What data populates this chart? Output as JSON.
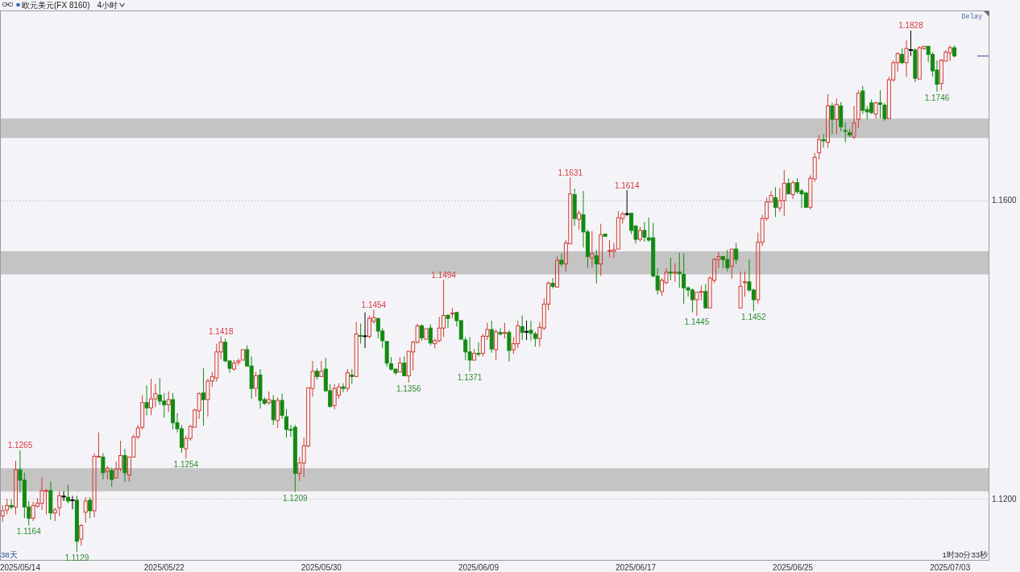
{
  "chart_data": {
    "type": "candlestick",
    "title": "欧元美元(FX 8160)",
    "subtitle": "4小时",
    "categories": [
      null,
      null,
      null,
      null,
      "2025/05/14",
      null,
      null,
      null,
      null,
      null,
      null,
      null,
      null,
      null,
      null,
      null,
      null,
      null,
      null,
      null,
      null,
      null,
      null,
      null,
      null,
      null,
      null,
      null,
      null,
      null,
      null,
      null,
      null,
      null,
      null,
      null,
      null,
      "2025/05/22",
      null,
      null,
      null,
      null,
      null,
      null,
      null,
      null,
      null,
      null,
      null,
      null,
      null,
      null,
      null,
      null,
      null,
      null,
      null,
      null,
      null,
      null,
      null,
      null,
      null,
      null,
      null,
      null,
      null,
      null,
      null,
      null,
      null,
      null,
      null,
      "2025/05/30",
      null,
      null,
      null,
      null,
      null,
      null,
      null,
      null,
      null,
      null,
      null,
      null,
      null,
      null,
      null,
      null,
      null,
      null,
      null,
      null,
      null,
      null,
      null,
      null,
      null,
      null,
      null,
      null,
      null,
      null,
      null,
      null,
      null,
      null,
      null,
      "2025/06/09",
      null,
      null,
      null,
      null,
      null,
      null,
      null,
      null,
      null,
      null,
      null,
      null,
      null,
      null,
      null,
      null,
      null,
      null,
      null,
      null,
      null,
      null,
      null,
      null,
      null,
      null,
      null,
      null,
      null,
      null,
      null,
      null,
      null,
      null,
      null,
      "2025/06/17",
      null,
      null,
      null,
      null,
      null,
      null,
      null,
      null,
      null,
      null,
      null,
      null,
      null,
      null,
      null,
      null,
      null,
      null,
      null,
      null,
      null,
      null,
      null,
      null,
      null,
      null,
      null,
      null,
      null,
      null,
      null,
      null,
      null,
      null,
      null,
      "2025/06/25",
      null,
      null,
      null,
      null,
      null,
      null,
      null,
      null,
      null,
      null,
      null,
      null,
      null,
      null,
      null,
      null,
      null,
      null,
      null,
      null,
      null,
      null,
      null,
      null,
      null,
      null,
      null,
      null,
      null,
      null,
      null,
      null,
      null,
      null,
      null,
      "2025/07/03",
      null
    ],
    "ohlc": [
      [
        1.1177,
        1.1191,
        1.1169,
        1.1184
      ],
      [
        1.1185,
        1.12,
        1.1179,
        1.1191
      ],
      [
        1.1191,
        1.1199,
        1.1186,
        1.1189
      ],
      [
        1.1189,
        1.1251,
        1.1179,
        1.1239
      ],
      [
        1.1239,
        1.1265,
        1.1208,
        1.1225
      ],
      [
        1.1225,
        1.1235,
        1.1174,
        1.1189
      ],
      [
        1.1189,
        1.1197,
        1.1164,
        1.1174
      ],
      [
        1.1174,
        1.1196,
        1.117,
        1.1191
      ],
      [
        1.119,
        1.1201,
        1.1188,
        1.1194
      ],
      [
        1.1194,
        1.1229,
        1.1185,
        1.1211
      ],
      [
        1.121,
        1.1213,
        1.1179,
        1.1211
      ],
      [
        1.1211,
        1.1223,
        1.1172,
        1.1181
      ],
      [
        1.1181,
        1.1188,
        1.117,
        1.1185
      ],
      [
        1.1188,
        1.121,
        1.1177,
        1.1204
      ],
      [
        1.1203,
        1.121,
        1.1197,
        1.1203
      ],
      [
        1.1202,
        1.1219,
        1.1194,
        1.1197
      ],
      [
        1.1198,
        1.1204,
        1.1186,
        1.1198
      ],
      [
        1.1198,
        1.1204,
        1.1129,
        1.1143
      ],
      [
        1.1146,
        1.1166,
        1.1137,
        1.1164
      ],
      [
        1.1182,
        1.1202,
        1.1168,
        1.1197
      ],
      [
        1.1198,
        1.1202,
        1.1174,
        1.1184
      ],
      [
        1.1184,
        1.1261,
        1.1175,
        1.1257
      ],
      [
        1.1256,
        1.1289,
        1.1255,
        1.1257
      ],
      [
        1.1256,
        1.1261,
        1.1226,
        1.1235
      ],
      [
        1.1237,
        1.1244,
        1.1226,
        1.1241
      ],
      [
        1.1238,
        1.1242,
        1.1216,
        1.1226
      ],
      [
        1.1228,
        1.125,
        1.1227,
        1.124
      ],
      [
        1.124,
        1.1278,
        1.1237,
        1.1258
      ],
      [
        1.1258,
        1.1267,
        1.1223,
        1.1235
      ],
      [
        1.1232,
        1.1256,
        1.1223,
        1.1256
      ],
      [
        1.1256,
        1.1286,
        1.1255,
        1.1283
      ],
      [
        1.1283,
        1.1299,
        1.128,
        1.1295
      ],
      [
        1.1296,
        1.1339,
        1.1293,
        1.1329
      ],
      [
        1.1329,
        1.1352,
        1.1312,
        1.1322
      ],
      [
        1.1322,
        1.1361,
        1.1312,
        1.1334
      ],
      [
        1.1334,
        1.1354,
        1.1323,
        1.1341
      ],
      [
        1.1339,
        1.1362,
        1.1326,
        1.1331
      ],
      [
        1.1331,
        1.1342,
        1.1309,
        1.1326
      ],
      [
        1.1326,
        1.1344,
        1.1316,
        1.1333
      ],
      [
        1.1333,
        1.1342,
        1.1293,
        1.1302
      ],
      [
        1.1302,
        1.1315,
        1.1289,
        1.1294
      ],
      [
        1.1294,
        1.1299,
        1.1262,
        1.1269
      ],
      [
        1.1267,
        1.1285,
        1.1254,
        1.1281
      ],
      [
        1.1281,
        1.1299,
        1.1278,
        1.1297
      ],
      [
        1.1296,
        1.1321,
        1.1295,
        1.1319
      ],
      [
        1.1318,
        1.1343,
        1.1307,
        1.1341
      ],
      [
        1.1342,
        1.1375,
        1.1298,
        1.1333
      ],
      [
        1.1333,
        1.1361,
        1.131,
        1.1358
      ],
      [
        1.1358,
        1.137,
        1.135,
        1.1364
      ],
      [
        1.1362,
        1.1408,
        1.1357,
        1.1397
      ],
      [
        1.1397,
        1.1418,
        1.1387,
        1.141
      ],
      [
        1.141,
        1.1415,
        1.1383,
        1.1385
      ],
      [
        1.1385,
        1.1386,
        1.1369,
        1.1375
      ],
      [
        1.1374,
        1.1386,
        1.1372,
        1.1382
      ],
      [
        1.1383,
        1.1388,
        1.1379,
        1.1385
      ],
      [
        1.1386,
        1.1401,
        1.1385,
        1.14
      ],
      [
        1.14,
        1.1406,
        1.1377,
        1.1378
      ],
      [
        1.1378,
        1.1391,
        1.1334,
        1.1348
      ],
      [
        1.1348,
        1.137,
        1.1337,
        1.1365
      ],
      [
        1.1366,
        1.1374,
        1.1321,
        1.1332
      ],
      [
        1.1333,
        1.1336,
        1.1326,
        1.1328
      ],
      [
        1.1329,
        1.1344,
        1.1326,
        1.1333
      ],
      [
        1.1332,
        1.1339,
        1.1299,
        1.1306
      ],
      [
        1.1305,
        1.1336,
        1.1295,
        1.1332
      ],
      [
        1.1332,
        1.1341,
        1.1307,
        1.1312
      ],
      [
        1.131,
        1.132,
        1.1282,
        1.1293
      ],
      [
        1.1293,
        1.1299,
        1.1283,
        1.1292
      ],
      [
        1.1296,
        1.1299,
        1.1209,
        1.1234
      ],
      [
        1.1234,
        1.1256,
        1.1224,
        1.1248
      ],
      [
        1.1248,
        1.1282,
        1.1229,
        1.1271
      ],
      [
        1.1271,
        1.1349,
        1.1269,
        1.1349
      ],
      [
        1.1348,
        1.1385,
        1.1337,
        1.1371
      ],
      [
        1.1371,
        1.1375,
        1.136,
        1.1364
      ],
      [
        1.1364,
        1.1385,
        1.1363,
        1.1371
      ],
      [
        1.1374,
        1.1389,
        1.1343,
        1.1345
      ],
      [
        1.1345,
        1.1354,
        1.1322,
        1.1324
      ],
      [
        1.1325,
        1.1354,
        1.132,
        1.1348
      ],
      [
        1.1339,
        1.1355,
        1.1334,
        1.135
      ],
      [
        1.135,
        1.1355,
        1.1343,
        1.1348
      ],
      [
        1.1348,
        1.1374,
        1.1344,
        1.1369
      ],
      [
        1.1366,
        1.1374,
        1.1354,
        1.1364
      ],
      [
        1.1364,
        1.1437,
        1.1363,
        1.1421
      ],
      [
        1.1419,
        1.1435,
        1.1408,
        1.1418
      ],
      [
        1.1418,
        1.145,
        1.1402,
        1.1418
      ],
      [
        1.1418,
        1.1446,
        1.1415,
        1.1442
      ],
      [
        1.1438,
        1.1454,
        1.1435,
        1.1443
      ],
      [
        1.1442,
        1.1442,
        1.1415,
        1.1425
      ],
      [
        1.1425,
        1.1429,
        1.1402,
        1.1412
      ],
      [
        1.1411,
        1.1412,
        1.1377,
        1.1382
      ],
      [
        1.1381,
        1.139,
        1.1372,
        1.1374
      ],
      [
        1.1374,
        1.1375,
        1.1366,
        1.1369
      ],
      [
        1.137,
        1.139,
        1.1369,
        1.1382
      ],
      [
        1.1382,
        1.1391,
        1.1364,
        1.1365
      ],
      [
        1.1365,
        1.1399,
        1.1356,
        1.1398
      ],
      [
        1.1397,
        1.1412,
        1.1372,
        1.141
      ],
      [
        1.141,
        1.1435,
        1.1408,
        1.1432
      ],
      [
        1.1432,
        1.1434,
        1.1412,
        1.1416
      ],
      [
        1.1414,
        1.1429,
        1.1413,
        1.1428
      ],
      [
        1.1429,
        1.1434,
        1.1406,
        1.1409
      ],
      [
        1.1408,
        1.1415,
        1.1402,
        1.1412
      ],
      [
        1.1412,
        1.1444,
        1.141,
        1.1429
      ],
      [
        1.1429,
        1.1494,
        1.1417,
        1.1446
      ],
      [
        1.1446,
        1.1448,
        1.1429,
        1.1442
      ],
      [
        1.1448,
        1.1456,
        1.1442,
        1.1449
      ],
      [
        1.145,
        1.1451,
        1.1431,
        1.1439
      ],
      [
        1.1439,
        1.144,
        1.1413,
        1.1414
      ],
      [
        1.1413,
        1.1417,
        1.1386,
        1.1397
      ],
      [
        1.1397,
        1.1417,
        1.1371,
        1.1386
      ],
      [
        1.1386,
        1.1401,
        1.1385,
        1.1395
      ],
      [
        1.1395,
        1.141,
        1.1391,
        1.1394
      ],
      [
        1.1395,
        1.1421,
        1.1391,
        1.1418
      ],
      [
        1.1418,
        1.1436,
        1.1413,
        1.1427
      ],
      [
        1.1427,
        1.1439,
        1.1396,
        1.1401
      ],
      [
        1.14,
        1.1427,
        1.1386,
        1.1424
      ],
      [
        1.1423,
        1.1429,
        1.1419,
        1.1421
      ],
      [
        1.1422,
        1.1436,
        1.1415,
        1.1423
      ],
      [
        1.1423,
        1.1426,
        1.1384,
        1.1399
      ],
      [
        1.14,
        1.1417,
        1.1394,
        1.1408
      ],
      [
        1.1408,
        1.1439,
        1.1402,
        1.1432
      ],
      [
        1.1431,
        1.1446,
        1.1413,
        1.1423
      ],
      [
        1.1424,
        1.1439,
        1.1413,
        1.1424
      ],
      [
        1.1426,
        1.1439,
        1.1412,
        1.1422
      ],
      [
        1.1421,
        1.1424,
        1.1404,
        1.1415
      ],
      [
        1.1415,
        1.1437,
        1.1404,
        1.143
      ],
      [
        1.1429,
        1.1469,
        1.1426,
        1.1461
      ],
      [
        1.1461,
        1.1492,
        1.1453,
        1.1489
      ],
      [
        1.1489,
        1.1496,
        1.1482,
        1.1485
      ],
      [
        1.1484,
        1.1525,
        1.1483,
        1.152
      ],
      [
        1.152,
        1.1529,
        1.1512,
        1.1515
      ],
      [
        1.1515,
        1.1547,
        1.1504,
        1.1543
      ],
      [
        1.1542,
        1.1631,
        1.1541,
        1.1609
      ],
      [
        1.1608,
        1.1616,
        1.1566,
        1.1576
      ],
      [
        1.1575,
        1.1587,
        1.1561,
        1.1583
      ],
      [
        1.1581,
        1.1613,
        1.1537,
        1.1558
      ],
      [
        1.1558,
        1.1561,
        1.151,
        1.1525
      ],
      [
        1.1523,
        1.1559,
        1.151,
        1.1529
      ],
      [
        1.1526,
        1.1534,
        1.1489,
        1.1515
      ],
      [
        1.1515,
        1.1569,
        1.1499,
        1.1554
      ],
      [
        1.1555,
        1.1556,
        1.1551,
        1.1552
      ],
      [
        1.1532,
        1.1547,
        1.1524,
        1.1533
      ],
      [
        1.1532,
        1.1543,
        1.1523,
        1.1534
      ],
      [
        1.1535,
        1.1586,
        1.1534,
        1.1577
      ],
      [
        1.1576,
        1.1585,
        1.1569,
        1.1582
      ],
      [
        1.1582,
        1.1614,
        1.1579,
        1.1582
      ],
      [
        1.1583,
        1.1584,
        1.1555,
        1.156
      ],
      [
        1.1566,
        1.1567,
        1.1542,
        1.1548
      ],
      [
        1.1548,
        1.1565,
        1.1545,
        1.156
      ],
      [
        1.156,
        1.1571,
        1.1545,
        1.1551
      ],
      [
        1.155,
        1.1577,
        1.1545,
        1.1547
      ],
      [
        1.155,
        1.157,
        1.1497,
        1.1499
      ],
      [
        1.1499,
        1.1509,
        1.1474,
        1.148
      ],
      [
        1.1478,
        1.1496,
        1.1472,
        1.1493
      ],
      [
        1.149,
        1.1509,
        1.1488,
        1.1504
      ],
      [
        1.1504,
        1.1523,
        1.1493,
        1.1503
      ],
      [
        1.1503,
        1.1516,
        1.1491,
        1.1504
      ],
      [
        1.1504,
        1.153,
        1.1483,
        1.1502
      ],
      [
        1.1501,
        1.1529,
        1.1461,
        1.1483
      ],
      [
        1.1483,
        1.1485,
        1.1471,
        1.148
      ],
      [
        1.148,
        1.1482,
        1.145,
        1.1467
      ],
      [
        1.1467,
        1.1478,
        1.1445,
        1.1477
      ],
      [
        1.1477,
        1.1486,
        1.1466,
        1.1478
      ],
      [
        1.1478,
        1.1488,
        1.1455,
        1.1456
      ],
      [
        1.1456,
        1.1499,
        1.1455,
        1.1496
      ],
      [
        1.1493,
        1.1523,
        1.1489,
        1.1521
      ],
      [
        1.1521,
        1.1531,
        1.1509,
        1.1525
      ],
      [
        1.1525,
        1.1526,
        1.1509,
        1.1521
      ],
      [
        1.1521,
        1.1534,
        1.1505,
        1.151
      ],
      [
        1.1512,
        1.1536,
        1.1495,
        1.1535
      ],
      [
        1.1535,
        1.1543,
        1.1515,
        1.1521
      ],
      [
        1.1456,
        1.1505,
        1.1455,
        1.1485
      ],
      [
        1.149,
        1.1505,
        1.1471,
        1.1491
      ],
      [
        1.1491,
        1.1521,
        1.1478,
        1.148
      ],
      [
        1.148,
        1.1482,
        1.1452,
        1.1467
      ],
      [
        1.1467,
        1.1557,
        1.1462,
        1.1544
      ],
      [
        1.1544,
        1.1581,
        1.1539,
        1.1576
      ],
      [
        1.1576,
        1.1604,
        1.1573,
        1.1598
      ],
      [
        1.1598,
        1.1613,
        1.1597,
        1.1607
      ],
      [
        1.1604,
        1.1618,
        1.1578,
        1.1591
      ],
      [
        1.159,
        1.1617,
        1.1585,
        1.16
      ],
      [
        1.16,
        1.1641,
        1.1579,
        1.1623
      ],
      [
        1.1623,
        1.163,
        1.1608,
        1.1609
      ],
      [
        1.1608,
        1.1627,
        1.1602,
        1.1624
      ],
      [
        1.1624,
        1.163,
        1.1609,
        1.1612
      ],
      [
        1.1613,
        1.1616,
        1.159,
        1.1609
      ],
      [
        1.161,
        1.1612,
        1.159,
        1.1591
      ],
      [
        1.1591,
        1.1634,
        1.1588,
        1.163
      ],
      [
        1.1629,
        1.1664,
        1.1625,
        1.1658
      ],
      [
        1.1664,
        1.1688,
        1.1655,
        1.1682
      ],
      [
        1.1682,
        1.1689,
        1.1671,
        1.168
      ],
      [
        1.1678,
        1.1743,
        1.1671,
        1.1727
      ],
      [
        1.1727,
        1.1731,
        1.1689,
        1.1709
      ],
      [
        1.1709,
        1.1737,
        1.1689,
        1.1729
      ],
      [
        1.1727,
        1.1732,
        1.1693,
        1.1699
      ],
      [
        1.1694,
        1.1705,
        1.1678,
        1.1693
      ],
      [
        1.1691,
        1.1696,
        1.1685,
        1.1688
      ],
      [
        1.1685,
        1.1727,
        1.1683,
        1.1704
      ],
      [
        1.1709,
        1.1748,
        1.1697,
        1.1744
      ],
      [
        1.1747,
        1.1754,
        1.1716,
        1.1721
      ],
      [
        1.1722,
        1.1727,
        1.1709,
        1.1719
      ],
      [
        1.1731,
        1.1736,
        1.1716,
        1.1718
      ],
      [
        1.1716,
        1.1733,
        1.171,
        1.1731
      ],
      [
        1.1731,
        1.1748,
        1.171,
        1.1729
      ],
      [
        1.1728,
        1.1731,
        1.1707,
        1.171
      ],
      [
        1.171,
        1.1766,
        1.1709,
        1.1762
      ],
      [
        1.1762,
        1.1788,
        1.1759,
        1.1785
      ],
      [
        1.1785,
        1.1799,
        1.1773,
        1.1797
      ],
      [
        1.1796,
        1.1804,
        1.1783,
        1.1785
      ],
      [
        1.1785,
        1.1815,
        1.1766,
        1.1804
      ],
      [
        1.1802,
        1.1828,
        1.1794,
        1.1802
      ],
      [
        1.1802,
        1.1804,
        1.1759,
        1.1764
      ],
      [
        1.1763,
        1.1807,
        1.1762,
        1.1805
      ],
      [
        1.1804,
        1.1807,
        1.1802,
        1.1807
      ],
      [
        1.1807,
        1.1808,
        1.1786,
        1.1796
      ],
      [
        1.1796,
        1.1799,
        1.1766,
        1.1774
      ],
      [
        1.1775,
        1.1788,
        1.1746,
        1.1756
      ],
      [
        1.1757,
        1.179,
        1.1748,
        1.1788
      ],
      [
        1.1787,
        1.1802,
        1.1786,
        1.1799
      ],
      [
        1.1798,
        1.1808,
        1.1787,
        1.1805
      ],
      [
        1.1805,
        1.1808,
        1.1792,
        1.1794
      ]
    ],
    "colors": [
      "#d23a2f",
      "#d23a2f",
      "#128a12",
      "#d23a2f",
      "#128a12",
      "#128a12",
      "#128a12",
      "#d23a2f",
      "#d23a2f",
      "#d23a2f",
      "#d23a2f",
      "#128a12",
      "#d23a2f",
      "#d23a2f",
      "#000000",
      "#128a12",
      "#000000",
      "#128a12",
      "#d23a2f",
      "#d23a2f",
      "#128a12",
      "#d23a2f",
      "#d23a2f",
      "#128a12",
      "#d23a2f",
      "#128a12",
      "#d23a2f",
      "#d23a2f",
      "#128a12",
      "#d23a2f",
      "#d23a2f",
      "#d23a2f",
      "#d23a2f",
      "#128a12",
      "#d23a2f",
      "#d23a2f",
      "#128a12",
      "#128a12",
      "#d23a2f",
      "#128a12",
      "#128a12",
      "#128a12",
      "#d23a2f",
      "#d23a2f",
      "#d23a2f",
      "#d23a2f",
      "#128a12",
      "#d23a2f",
      "#d23a2f",
      "#d23a2f",
      "#d23a2f",
      "#128a12",
      "#128a12",
      "#d23a2f",
      "#d23a2f",
      "#d23a2f",
      "#128a12",
      "#128a12",
      "#d23a2f",
      "#128a12",
      "#128a12",
      "#d23a2f",
      "#128a12",
      "#d23a2f",
      "#128a12",
      "#128a12",
      "#128a12",
      "#128a12",
      "#d23a2f",
      "#d23a2f",
      "#d23a2f",
      "#d23a2f",
      "#128a12",
      "#d23a2f",
      "#128a12",
      "#128a12",
      "#d23a2f",
      "#d23a2f",
      "#128a12",
      "#d23a2f",
      "#128a12",
      "#d23a2f",
      "#128a12",
      "#000000",
      "#d23a2f",
      "#d23a2f",
      "#128a12",
      "#128a12",
      "#128a12",
      "#128a12",
      "#128a12",
      "#d23a2f",
      "#128a12",
      "#d23a2f",
      "#d23a2f",
      "#d23a2f",
      "#128a12",
      "#d23a2f",
      "#128a12",
      "#d23a2f",
      "#d23a2f",
      "#d23a2f",
      "#128a12",
      "#d23a2f",
      "#128a12",
      "#128a12",
      "#128a12",
      "#128a12",
      "#d23a2f",
      "#128a12",
      "#d23a2f",
      "#d23a2f",
      "#128a12",
      "#d23a2f",
      "#128a12",
      "#d23a2f",
      "#128a12",
      "#d23a2f",
      "#d23a2f",
      "#128a12",
      "#000000",
      "#128a12",
      "#128a12",
      "#d23a2f",
      "#d23a2f",
      "#d23a2f",
      "#128a12",
      "#d23a2f",
      "#128a12",
      "#d23a2f",
      "#d23a2f",
      "#128a12",
      "#d23a2f",
      "#128a12",
      "#128a12",
      "#d23a2f",
      "#128a12",
      "#d23a2f",
      "#128a12",
      "#d23a2f",
      "#d23a2f",
      "#d23a2f",
      "#d23a2f",
      "#000000",
      "#128a12",
      "#128a12",
      "#d23a2f",
      "#128a12",
      "#128a12",
      "#128a12",
      "#128a12",
      "#d23a2f",
      "#d23a2f",
      "#128a12",
      "#d23a2f",
      "#128a12",
      "#128a12",
      "#128a12",
      "#128a12",
      "#d23a2f",
      "#d23a2f",
      "#128a12",
      "#d23a2f",
      "#d23a2f",
      "#d23a2f",
      "#128a12",
      "#128a12",
      "#d23a2f",
      "#128a12",
      "#d23a2f",
      "#d23a2f",
      "#128a12",
      "#128a12",
      "#d23a2f",
      "#d23a2f",
      "#d23a2f",
      "#d23a2f",
      "#128a12",
      "#d23a2f",
      "#d23a2f",
      "#128a12",
      "#d23a2f",
      "#128a12",
      "#128a12",
      "#128a12",
      "#d23a2f",
      "#d23a2f",
      "#d23a2f",
      "#128a12",
      "#d23a2f",
      "#128a12",
      "#d23a2f",
      "#128a12",
      "#128a12",
      "#128a12",
      "#d23a2f",
      "#d23a2f",
      "#128a12",
      "#128a12",
      "#128a12",
      "#d23a2f",
      "#128a12",
      "#128a12",
      "#d23a2f",
      "#d23a2f",
      "#d23a2f",
      "#128a12",
      "#d23a2f",
      "#000000",
      "#128a12",
      "#d23a2f",
      "#d23a2f",
      "#128a12",
      "#128a12",
      "#128a12",
      "#d23a2f",
      "#d23a2f",
      "#d23a2f",
      "#128a12"
    ],
    "value_labels": [
      null,
      null,
      null,
      null,
      "1.1265",
      null,
      "1.1164",
      null,
      null,
      null,
      null,
      null,
      null,
      null,
      null,
      null,
      null,
      "1.1129",
      null,
      null,
      null,
      null,
      null,
      null,
      null,
      null,
      null,
      null,
      null,
      null,
      null,
      null,
      null,
      null,
      null,
      null,
      null,
      null,
      null,
      null,
      null,
      null,
      "1.1254",
      null,
      null,
      null,
      null,
      null,
      null,
      null,
      "1.1418",
      null,
      null,
      null,
      null,
      null,
      null,
      null,
      null,
      null,
      null,
      null,
      null,
      null,
      null,
      null,
      null,
      "1.1209",
      null,
      null,
      null,
      null,
      null,
      null,
      null,
      null,
      null,
      null,
      null,
      null,
      null,
      null,
      null,
      null,
      null,
      "1.1454",
      null,
      null,
      null,
      null,
      null,
      null,
      null,
      "1.1356",
      null,
      null,
      null,
      null,
      null,
      null,
      null,
      "1.1494",
      null,
      null,
      null,
      null,
      null,
      "1.1371",
      null,
      null,
      null,
      null,
      null,
      null,
      null,
      null,
      null,
      null,
      null,
      null,
      null,
      null,
      null,
      null,
      null,
      null,
      null,
      null,
      null,
      null,
      "1.1631",
      null,
      null,
      null,
      null,
      null,
      null,
      null,
      null,
      null,
      null,
      null,
      null,
      "1.1614",
      null,
      null,
      null,
      null,
      null,
      null,
      null,
      null,
      null,
      null,
      null,
      null,
      null,
      null,
      null,
      "1.1445",
      null,
      null,
      null,
      null,
      null,
      null,
      null,
      null,
      null,
      null,
      null,
      null,
      "1.1452",
      null,
      null,
      null,
      null,
      null,
      null,
      null,
      null,
      null,
      null,
      null,
      null,
      null,
      null,
      null,
      null,
      null,
      null,
      null,
      null,
      null,
      null,
      null,
      null,
      null,
      null,
      null,
      null,
      null,
      null,
      null,
      null,
      null,
      null,
      null,
      "1.1828",
      null,
      null,
      null,
      null,
      null,
      "1.1746",
      null,
      null,
      null,
      null
    ],
    "ylim": [
      1.1118,
      1.1855
    ],
    "yticks": [
      {
        "value": 1.16,
        "label": "1.1600"
      },
      {
        "value": 1.12,
        "label": "1.1200"
      }
    ],
    "grid": "y",
    "bands": [
      {
        "axis": "y",
        "from": 1.121,
        "to": 1.1241,
        "color": "#c4c4c4"
      },
      {
        "axis": "y",
        "from": 1.1501,
        "to": 1.1532,
        "color": "#c4c4c4"
      },
      {
        "axis": "y",
        "from": 1.1684,
        "to": 1.171,
        "color": "#c4c4c4"
      }
    ],
    "annotations": [
      "Delay",
      "38天",
      "1时30分33秒"
    ]
  }
}
